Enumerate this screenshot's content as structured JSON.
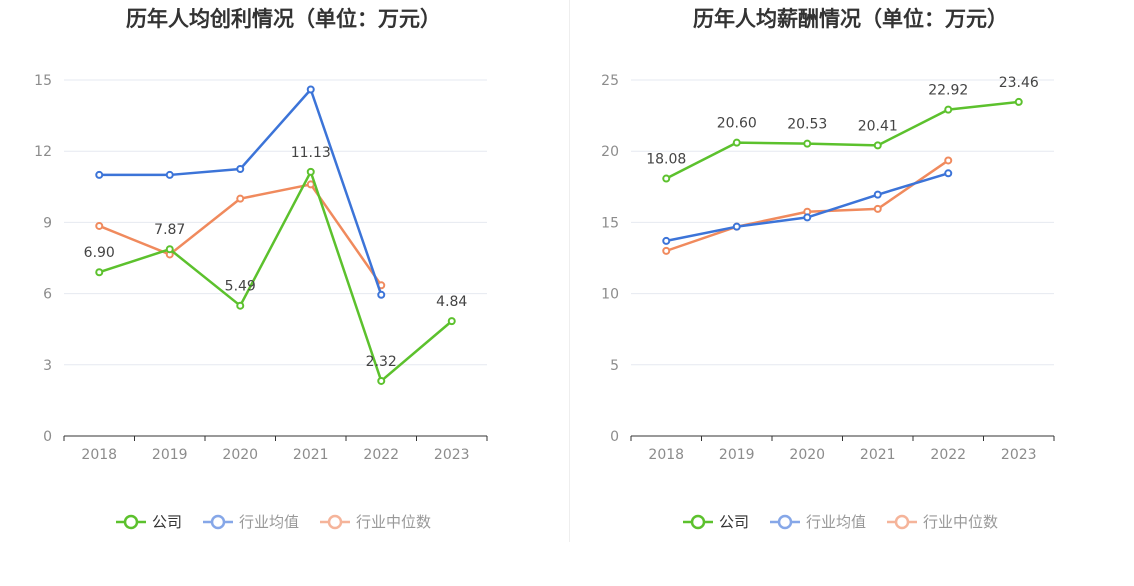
{
  "colors": {
    "company": "#5cc12d",
    "industry_avg": "#3c74d8",
    "industry_median": "#f08a5d",
    "legend_avg": "#86a7e8",
    "legend_median": "#f5b49a",
    "grid": "#e6e9f0",
    "axis": "#333333"
  },
  "chart_data": [
    {
      "type": "line",
      "title": "历年人均创利情况（单位：万元）",
      "categories": [
        "2018",
        "2019",
        "2020",
        "2021",
        "2022",
        "2023"
      ],
      "ylim": [
        0,
        15
      ],
      "yticks": [
        0,
        3,
        6,
        9,
        12,
        15
      ],
      "grid": true,
      "legend_position": "bottom-center",
      "series": [
        {
          "name": "公司",
          "values": [
            6.9,
            7.87,
            5.49,
            11.13,
            2.32,
            4.84
          ],
          "labels": [
            "6.90",
            "7.87",
            "5.49",
            "11.13",
            "2.32",
            "4.84"
          ]
        },
        {
          "name": "行业均值",
          "values": [
            11.0,
            11.0,
            11.25,
            14.6,
            5.95,
            null
          ]
        },
        {
          "name": "行业中位数",
          "values": [
            8.85,
            7.65,
            10.0,
            10.6,
            6.35,
            null
          ]
        }
      ]
    },
    {
      "type": "line",
      "title": "历年人均薪酬情况（单位：万元）",
      "categories": [
        "2018",
        "2019",
        "2020",
        "2021",
        "2022",
        "2023"
      ],
      "ylim": [
        0,
        25
      ],
      "yticks": [
        0,
        5,
        10,
        15,
        20,
        25
      ],
      "grid": true,
      "legend_position": "bottom-center",
      "series": [
        {
          "name": "公司",
          "values": [
            18.08,
            20.6,
            20.53,
            20.41,
            22.92,
            23.46
          ],
          "labels": [
            "18.08",
            "20.60",
            "20.53",
            "20.41",
            "22.92",
            "23.46"
          ]
        },
        {
          "name": "行业均值",
          "values": [
            13.7,
            14.7,
            15.35,
            16.95,
            18.45,
            null
          ]
        },
        {
          "name": "行业中位数",
          "values": [
            13.0,
            14.7,
            15.75,
            15.95,
            19.35,
            null
          ]
        }
      ]
    }
  ]
}
